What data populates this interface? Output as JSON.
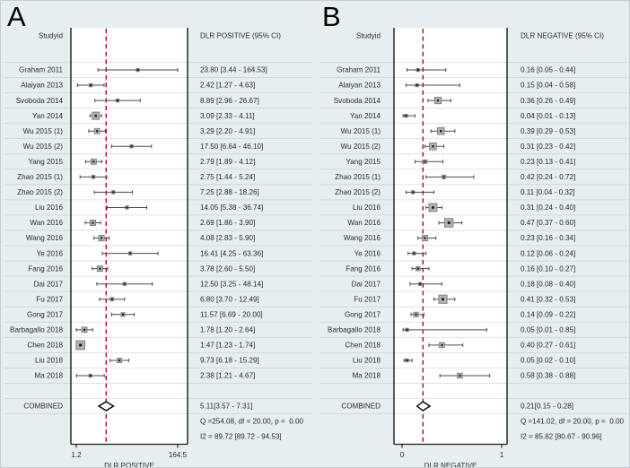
{
  "figure": {
    "background_color": "#e7eef0",
    "plot_area_color": "#ffffff",
    "reference_line_color": "#c00020",
    "marker_fill_color": "#b3b3b3",
    "marker_center_color": "#111111",
    "axis_color": "#1a1a1a"
  },
  "chart_data": [
    {
      "type": "scatter",
      "variant": "forest-plot",
      "panel_label": "A",
      "column_headers": {
        "left": "Studyid",
        "right": "DLR POSITIVE (95% CI)"
      },
      "x_axis": {
        "scale": "log",
        "min": 1.2,
        "max": 164.5,
        "tick_labels": [
          "1.2",
          "164.5"
        ],
        "label": "DLR POSITIVE",
        "grid": false
      },
      "studies": [
        {
          "name": "Graham 2011",
          "est": 23.8,
          "lo": 3.44,
          "hi": 164.53,
          "ci_text": "23.80 [3.44 - 164.53]"
        },
        {
          "name": "Alaiyan 2013",
          "est": 2.42,
          "lo": 1.27,
          "hi": 4.63,
          "ci_text": "2.42 [1.27 - 4.63]"
        },
        {
          "name": "Svoboda 2014",
          "est": 8.89,
          "lo": 2.96,
          "hi": 26.67,
          "ci_text": "8.89 [2.96 - 26.67]"
        },
        {
          "name": "Yan 2014",
          "est": 3.09,
          "lo": 2.33,
          "hi": 4.11,
          "ci_text": "3.09 [2.33 - 4.11]"
        },
        {
          "name": "Wu 2015 (1)",
          "est": 3.29,
          "lo": 2.2,
          "hi": 4.91,
          "ci_text": "3.29 [2.20 - 4.91]"
        },
        {
          "name": "Wu 2015 (2)",
          "est": 17.5,
          "lo": 6.64,
          "hi": 46.1,
          "ci_text": "17.50 [6.64 - 46.10]"
        },
        {
          "name": "Yang 2015",
          "est": 2.79,
          "lo": 1.89,
          "hi": 4.12,
          "ci_text": "2.79 [1.89 - 4.12]"
        },
        {
          "name": "Zhao 2015 (1)",
          "est": 2.75,
          "lo": 1.44,
          "hi": 5.24,
          "ci_text": "2.75 [1.44 - 5.24]"
        },
        {
          "name": "Zhao 2015 (2)",
          "est": 7.25,
          "lo": 2.88,
          "hi": 18.26,
          "ci_text": "7.25 [2.88 - 18.26]"
        },
        {
          "name": "Liu 2016",
          "est": 14.05,
          "lo": 5.38,
          "hi": 36.74,
          "ci_text": "14.05 [5.38 - 36.74]"
        },
        {
          "name": "Wan 2016",
          "est": 2.69,
          "lo": 1.86,
          "hi": 3.9,
          "ci_text": "2.69 [1.86 - 3.90]"
        },
        {
          "name": "Wang 2016",
          "est": 4.08,
          "lo": 2.83,
          "hi": 5.9,
          "ci_text": "4.08 [2.83 - 5.90]"
        },
        {
          "name": "Ye 2016",
          "est": 16.41,
          "lo": 4.25,
          "hi": 63.36,
          "ci_text": "16.41 [4.25 - 63.36]"
        },
        {
          "name": "Fang 2016",
          "est": 3.78,
          "lo": 2.6,
          "hi": 5.5,
          "ci_text": "3.78 [2.60 - 5.50]"
        },
        {
          "name": "Dai 2017",
          "est": 12.5,
          "lo": 3.25,
          "hi": 48.14,
          "ci_text": "12.50 [3.25 - 48.14]"
        },
        {
          "name": "Fu 2017",
          "est": 6.8,
          "lo": 3.7,
          "hi": 12.49,
          "ci_text": "6.80 [3.70 - 12.49]"
        },
        {
          "name": "Gong 2017",
          "est": 11.57,
          "lo": 6.69,
          "hi": 20.0,
          "ci_text": "11.57 [6.69 - 20.00]"
        },
        {
          "name": "Barbagallo 2018",
          "est": 1.78,
          "lo": 1.2,
          "hi": 2.64,
          "ci_text": "1.78 [1.20 - 2.64]"
        },
        {
          "name": "Chen 2018",
          "est": 1.47,
          "lo": 1.23,
          "hi": 1.74,
          "ci_text": "1.47 [1.23 - 1.74]"
        },
        {
          "name": "Liu 2018",
          "est": 9.73,
          "lo": 6.18,
          "hi": 15.29,
          "ci_text": "9.73 [6.18 - 15.29]"
        },
        {
          "name": "Ma 2018",
          "est": 2.38,
          "lo": 1.21,
          "hi": 4.67,
          "ci_text": "2.38 [1.21 - 4.67]"
        }
      ],
      "combined": {
        "name": "COMBINED",
        "est": 5.11,
        "lo": 3.57,
        "hi": 7.31,
        "ci_text": "5.11[3.57 - 7.31]"
      },
      "heterogeneity": [
        "Q =254.08, df = 20.00, p =  0.00",
        "I2 = 89.72 [89.72 - 94.53]"
      ]
    },
    {
      "type": "scatter",
      "variant": "forest-plot",
      "panel_label": "B",
      "column_headers": {
        "left": "Studyid",
        "right": "DLR NEGATIVE (95% CI)"
      },
      "x_axis": {
        "scale": "linear",
        "min": 0,
        "max": 1,
        "tick_labels": [
          "0",
          "1"
        ],
        "label": "DLR NEGATIVE",
        "grid": false
      },
      "studies": [
        {
          "name": "Graham 2011",
          "est": 0.16,
          "lo": 0.05,
          "hi": 0.44,
          "ci_text": "0.16 [0.05 - 0.44]"
        },
        {
          "name": "Alaiyan 2013",
          "est": 0.15,
          "lo": 0.04,
          "hi": 0.58,
          "ci_text": "0.15 [0.04 - 0.58]"
        },
        {
          "name": "Svoboda 2014",
          "est": 0.36,
          "lo": 0.26,
          "hi": 0.49,
          "ci_text": "0.36 [0.26 - 0.49]"
        },
        {
          "name": "Yan 2014",
          "est": 0.04,
          "lo": 0.01,
          "hi": 0.13,
          "ci_text": "0.04 [0.01 - 0.13]"
        },
        {
          "name": "Wu 2015 (1)",
          "est": 0.39,
          "lo": 0.29,
          "hi": 0.53,
          "ci_text": "0.39 [0.29 - 0.53]"
        },
        {
          "name": "Wu 2015 (2)",
          "est": 0.31,
          "lo": 0.23,
          "hi": 0.42,
          "ci_text": "0.31 [0.23 - 0.42]"
        },
        {
          "name": "Yang 2015",
          "est": 0.23,
          "lo": 0.13,
          "hi": 0.41,
          "ci_text": "0.23 [0.13 - 0.41]"
        },
        {
          "name": "Zhao 2015 (1)",
          "est": 0.42,
          "lo": 0.24,
          "hi": 0.72,
          "ci_text": "0.42 [0.24 - 0.72]"
        },
        {
          "name": "Zhao 2015 (2)",
          "est": 0.11,
          "lo": 0.04,
          "hi": 0.32,
          "ci_text": "0.11 [0.04 - 0.32]"
        },
        {
          "name": "Liu 2016",
          "est": 0.31,
          "lo": 0.24,
          "hi": 0.4,
          "ci_text": "0.31 [0.24 - 0.40]"
        },
        {
          "name": "Wan 2016",
          "est": 0.47,
          "lo": 0.37,
          "hi": 0.6,
          "ci_text": "0.47 [0.37 - 0.60]"
        },
        {
          "name": "Wang 2016",
          "est": 0.23,
          "lo": 0.16,
          "hi": 0.34,
          "ci_text": "0.23 [0.16 - 0.34]"
        },
        {
          "name": "Ye 2016",
          "est": 0.12,
          "lo": 0.06,
          "hi": 0.24,
          "ci_text": "0.12 [0.06 - 0.24]"
        },
        {
          "name": "Fang 2016",
          "est": 0.16,
          "lo": 0.1,
          "hi": 0.27,
          "ci_text": "0.16 [0.10 - 0.27]"
        },
        {
          "name": "Dai 2017",
          "est": 0.18,
          "lo": 0.08,
          "hi": 0.4,
          "ci_text": "0.18 [0.08 - 0.40]"
        },
        {
          "name": "Fu 2017",
          "est": 0.41,
          "lo": 0.32,
          "hi": 0.53,
          "ci_text": "0.41 [0.32 - 0.53]"
        },
        {
          "name": "Gong 2017",
          "est": 0.14,
          "lo": 0.09,
          "hi": 0.22,
          "ci_text": "0.14 [0.09 - 0.22]"
        },
        {
          "name": "Barbagallo 2018",
          "est": 0.05,
          "lo": 0.01,
          "hi": 0.85,
          "ci_text": "0.05 [0.01 - 0.85]"
        },
        {
          "name": "Chen 2018",
          "est": 0.4,
          "lo": 0.27,
          "hi": 0.61,
          "ci_text": "0.40 [0.27 - 0.61]"
        },
        {
          "name": "Liu 2018",
          "est": 0.05,
          "lo": 0.02,
          "hi": 0.1,
          "ci_text": "0.05 [0.02 - 0.10]"
        },
        {
          "name": "Ma 2018",
          "est": 0.58,
          "lo": 0.38,
          "hi": 0.88,
          "ci_text": "0.58 [0.38 - 0.88]"
        }
      ],
      "combined": {
        "name": "COMBINED",
        "est": 0.21,
        "lo": 0.15,
        "hi": 0.28,
        "ci_text": "0.21[0.15 - 0.28]"
      },
      "heterogeneity": [
        "Q =141.02, df = 20.00, p =  0.00",
        "I2 = 85.82 [80.67 - 90.96]"
      ]
    }
  ]
}
